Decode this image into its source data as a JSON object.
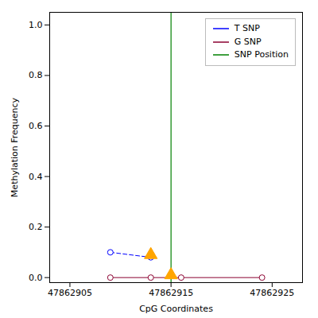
{
  "chart_data": {
    "type": "line",
    "xlabel": "CpG Coordinates",
    "ylabel": "Methylation Frequency",
    "xlim": [
      47862903,
      47862928
    ],
    "xticks": [
      47862905,
      47862915,
      47862925
    ],
    "ylim": [
      -0.02,
      1.05
    ],
    "yticks": [
      {
        "value": 0.0,
        "label": "0.0"
      },
      0.2,
      0.4,
      0.6,
      0.8,
      {
        "value": 1.0,
        "label": "1.0"
      }
    ],
    "grid": false,
    "legend": "upper right",
    "series": [
      {
        "name": "T SNP",
        "type": "line",
        "color": "blue",
        "line_style": "dashed",
        "marker": "circle",
        "x": [
          47862909,
          47862913
        ],
        "values": [
          0.1,
          0.08
        ]
      },
      {
        "name": "G SNP",
        "type": "line",
        "color": "#8B0030",
        "line_style": "solid",
        "marker": "circle",
        "x": [
          47862909,
          47862913,
          47862916,
          47862924
        ],
        "values": [
          0.0,
          0.0,
          0.0,
          0.0
        ]
      },
      {
        "name": "SNP Position",
        "type": "vline",
        "color": "green",
        "x": [
          47862915
        ]
      },
      {
        "type": "scatter",
        "color": "#FFA500",
        "marker": "triangle",
        "x": [
          47862913,
          47862915
        ],
        "values": [
          0.09,
          0.01
        ]
      }
    ]
  }
}
